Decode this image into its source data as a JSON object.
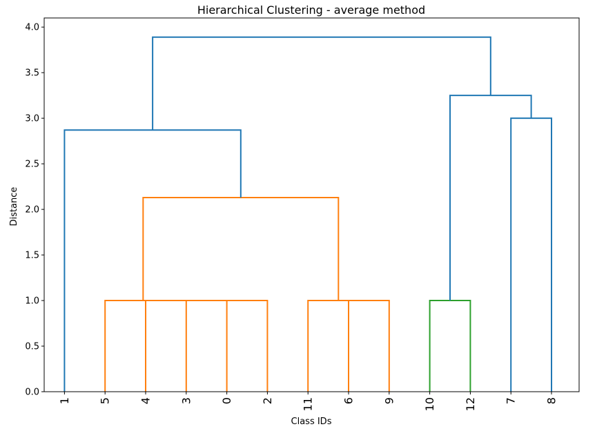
{
  "chart_data": {
    "type": "dendrogram",
    "title": "Hierarchical Clustering - average method",
    "xlabel": "Class IDs",
    "ylabel": "Distance",
    "ylim": [
      0,
      4.1
    ],
    "yticks": [
      "0.0",
      "0.5",
      "1.0",
      "1.5",
      "2.0",
      "2.5",
      "3.0",
      "3.5",
      "4.0"
    ],
    "leaf_order": [
      "1",
      "5",
      "4",
      "3",
      "0",
      "2",
      "11",
      "6",
      "9",
      "10",
      "12",
      "7",
      "8"
    ],
    "colors": {
      "above_threshold": "#1f77b4",
      "cluster_1": "#ff7f0e",
      "cluster_2": "#2ca02c"
    },
    "merges": [
      {
        "left": "0",
        "right": "2",
        "distance": 1.0,
        "color": "cluster_1"
      },
      {
        "left": "3",
        "right": "(0,2)",
        "distance": 1.0,
        "color": "cluster_1"
      },
      {
        "left": "4",
        "right": "(3,0,2)",
        "distance": 1.0,
        "color": "cluster_1"
      },
      {
        "left": "5",
        "right": "(4,3,0,2)",
        "distance": 1.0,
        "color": "cluster_1"
      },
      {
        "left": "6",
        "right": "9",
        "distance": 1.0,
        "color": "cluster_1"
      },
      {
        "left": "11",
        "right": "(6,9)",
        "distance": 1.0,
        "color": "cluster_1"
      },
      {
        "left": "(5,4,3,0,2)",
        "right": "(11,6,9)",
        "distance": 2.13,
        "color": "cluster_1"
      },
      {
        "left": "1",
        "right": "(5,4,3,0,2,11,6,9)",
        "distance": 2.87,
        "color": "above_threshold"
      },
      {
        "left": "10",
        "right": "12",
        "distance": 1.0,
        "color": "cluster_2"
      },
      {
        "left": "7",
        "right": "8",
        "distance": 3.0,
        "color": "above_threshold"
      },
      {
        "left": "(10,12)",
        "right": "(7,8)",
        "distance": 3.25,
        "color": "above_threshold"
      },
      {
        "left": "(1,5,4,3,0,2,11,6,9)",
        "right": "(10,12,7,8)",
        "distance": 3.89,
        "color": "above_threshold"
      }
    ]
  }
}
